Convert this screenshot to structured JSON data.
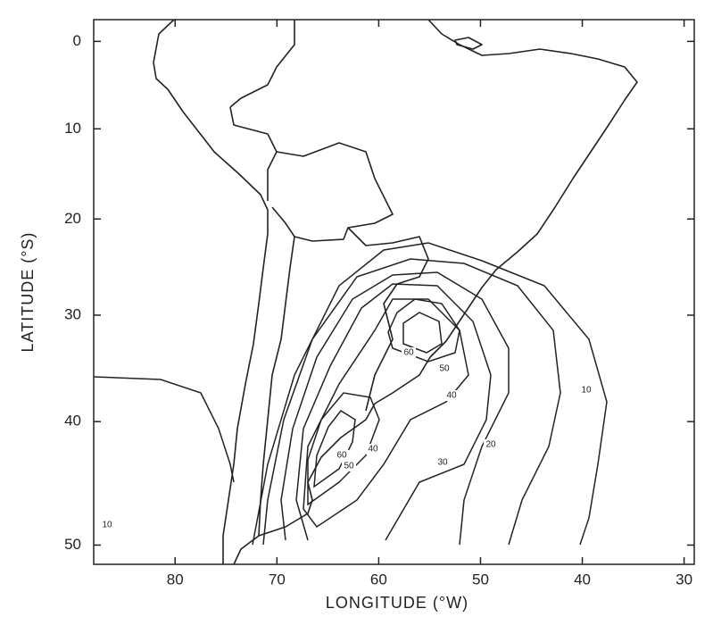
{
  "map": {
    "xlabel": "LONGITUDE (°W)",
    "ylabel": "LATITUDE (°S)",
    "xlim": [
      88,
      29
    ],
    "ylim": [
      -2.5,
      51.4
    ],
    "xticks": [
      80,
      70,
      60,
      50,
      40,
      30
    ],
    "yticks": [
      0,
      10,
      20,
      30,
      40,
      50
    ],
    "contour_labels": [
      60,
      50,
      40,
      10,
      20,
      30,
      60,
      40,
      50,
      10
    ]
  }
}
